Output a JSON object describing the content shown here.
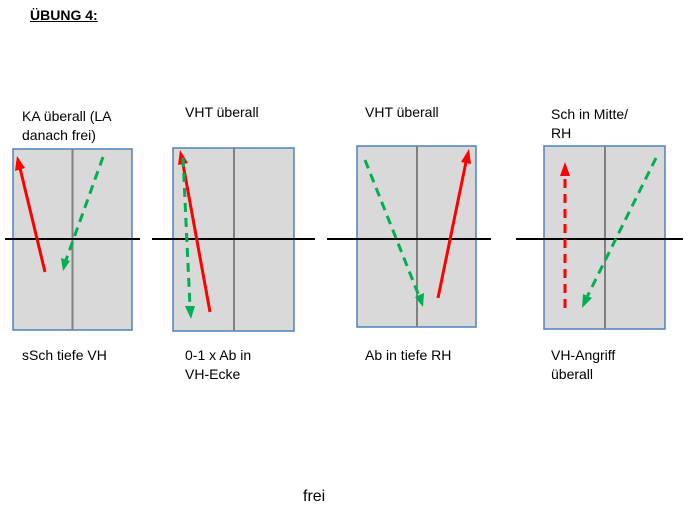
{
  "title": "ÜBUNG 4:",
  "footer": "frei",
  "colors": {
    "court_fill": "#d9d9d9",
    "court_border": "#4f81bd",
    "centre_line": "#808080",
    "net": "#000000",
    "solid_arrow": "#ff0000",
    "dashed_arrow_green": "#00b050",
    "dashed_arrow_red": "#ff0000"
  },
  "drills": [
    {
      "top_label": "KA überall (LA\ndanach frei)",
      "bottom_label": "sSch tiefe VH",
      "arrows": [
        {
          "style": "solid",
          "color": "red",
          "direction": "up",
          "from": "left-centre",
          "to": "top-left"
        },
        {
          "style": "dashed",
          "color": "green",
          "direction": "down",
          "from": "top-right",
          "to": "centre"
        }
      ]
    },
    {
      "top_label": "VHT überall",
      "bottom_label": "0-1 x Ab in\nVH-Ecke",
      "arrows": [
        {
          "style": "solid",
          "color": "red",
          "direction": "up",
          "from": "bottom-centre",
          "to": "top-left"
        },
        {
          "style": "dashed",
          "color": "green",
          "direction": "down",
          "from": "top-left",
          "to": "bottom-left"
        }
      ]
    },
    {
      "top_label": "VHT überall",
      "bottom_label": "Ab in tiefe RH",
      "arrows": [
        {
          "style": "dashed",
          "color": "green",
          "direction": "down",
          "from": "top-left",
          "to": "bottom-centre"
        },
        {
          "style": "solid",
          "color": "red",
          "direction": "up",
          "from": "bottom-centre",
          "to": "top-right"
        }
      ]
    },
    {
      "top_label": "Sch in Mitte/\nRH",
      "bottom_label": "VH-Angriff\nüberall",
      "arrows": [
        {
          "style": "dashed",
          "color": "red",
          "direction": "up",
          "from": "bottom-left",
          "to": "top-left"
        },
        {
          "style": "dashed",
          "color": "green",
          "direction": "down",
          "from": "top-right",
          "to": "bottom-centre"
        }
      ]
    }
  ]
}
